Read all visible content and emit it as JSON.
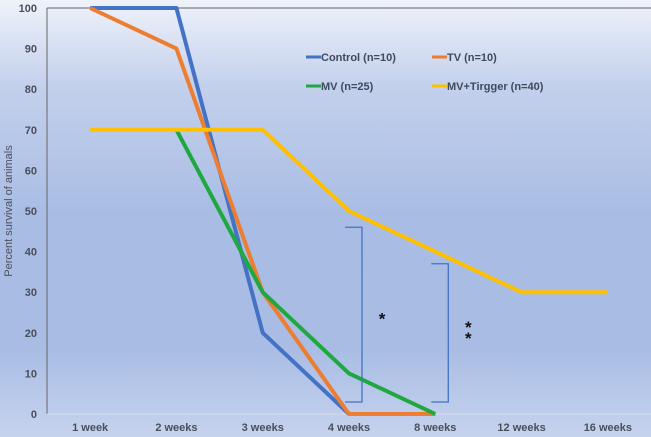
{
  "chart_data": {
    "type": "line",
    "title": "",
    "xlabel": "",
    "ylabel": "Percent survival  of animals",
    "categories": [
      "1 week",
      "2 weeks",
      "3 weeks",
      "4 weeks",
      "8 weeks",
      "12 weeks",
      "16 weeks"
    ],
    "ylim": [
      0,
      100
    ],
    "yticks": [
      0,
      10,
      20,
      30,
      40,
      50,
      60,
      70,
      80,
      90,
      100
    ],
    "legend_position": "top-right",
    "series": [
      {
        "name": "Control (n=10)",
        "color": "#4472c4",
        "values": [
          100,
          100,
          20,
          0,
          null,
          null,
          null
        ]
      },
      {
        "name": "TV (n=10)",
        "color": "#ed7d31",
        "values": [
          100,
          90,
          30,
          0,
          0,
          null,
          null
        ]
      },
      {
        "name": "MV (n=25)",
        "color": "#1fa83f",
        "values": [
          null,
          70,
          30,
          10,
          0,
          null,
          null
        ]
      },
      {
        "name": "MV+Tirgger (n=40)",
        "color": "#ffc000",
        "values": [
          70,
          70,
          70,
          50,
          40,
          30,
          30
        ]
      }
    ],
    "annotations": [
      {
        "text": "*",
        "bracket_category": "4 weeks",
        "range": [
          0,
          46
        ]
      },
      {
        "text": "**",
        "bracket_category": "8 weeks",
        "range": [
          0,
          37
        ]
      }
    ]
  }
}
